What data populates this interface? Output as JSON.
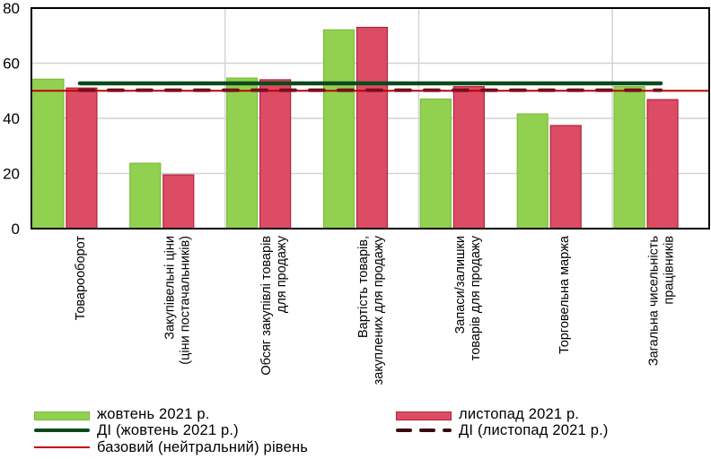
{
  "chart_data": {
    "type": "bar",
    "title": "",
    "xlabel": "",
    "ylabel": "",
    "ylim": [
      0,
      80
    ],
    "yticks": [
      0,
      20,
      40,
      60,
      80
    ],
    "grid": true,
    "legend_position": "bottom",
    "categories": [
      [
        "Товарооборот"
      ],
      [
        "Закупівельні ціни",
        "(ціни постачальників)"
      ],
      [
        "Обсяг закупівлі товарів",
        "для продажу"
      ],
      [
        "Вартість товарів,",
        "закуплених для продажу"
      ],
      [
        "Запаси/залишки",
        "товарів для продажу"
      ],
      [
        "Торговельна маржа"
      ],
      [
        "Загальна чисельність",
        "працівників"
      ]
    ],
    "series": [
      {
        "name": "жовтень 2021 р.",
        "kind": "bar",
        "color": "#92d050",
        "border": "#7cbd3a",
        "values": [
          54.2,
          23.7,
          54.6,
          72.1,
          47.0,
          41.6,
          51.5
        ]
      },
      {
        "name": "листопад 2021 р.",
        "kind": "bar",
        "color": "#dc4c64",
        "border": "#b0243c",
        "values": [
          51.0,
          19.5,
          54.0,
          73.0,
          51.5,
          37.4,
          46.8
        ]
      }
    ],
    "lines": [
      {
        "name": "ДІ (жовтень 2021 р.)",
        "kind": "solid",
        "color": "#0b4a1c",
        "value": 52.7
      },
      {
        "name": "ДІ (листопад 2021 р.)",
        "kind": "dashed",
        "color": "#7a0c1e",
        "value": 50.2
      },
      {
        "name": "базовий (нейтральний) рівень",
        "kind": "reference",
        "color": "#c00000",
        "value": 50
      }
    ]
  },
  "legend": {
    "items": [
      {
        "label": "жовтень 2021 р.",
        "type": "bar-green"
      },
      {
        "label": "листопад 2021 р.",
        "type": "bar-red"
      },
      {
        "label": "ДІ (жовтень 2021 р.)",
        "type": "line-green"
      },
      {
        "label": "ДІ (листопад 2021 р.)",
        "type": "line-dashed"
      },
      {
        "label": "базовий (нейтральний) рівень",
        "type": "line-red"
      }
    ]
  }
}
